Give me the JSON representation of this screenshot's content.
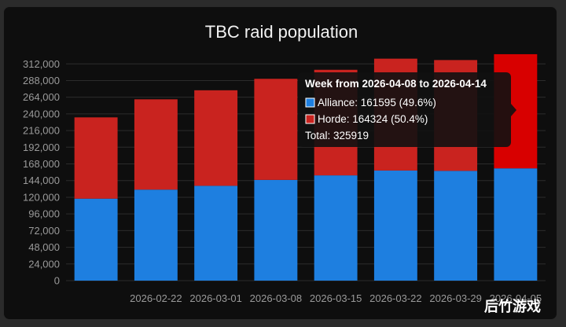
{
  "chart_data": {
    "type": "bar",
    "stacked": true,
    "title": "TBC raid population",
    "categories": [
      "",
      "2026-02-22",
      "2026-03-01",
      "2026-03-08",
      "2026-03-15",
      "2026-03-22",
      "2026-03-29",
      "2026-04-05"
    ],
    "x_tick_labels": [
      "2026-02-22",
      "2026-03-01",
      "2026-03-08",
      "2026-03-15",
      "2026-03-22",
      "2026-03-29",
      "2026-04-05"
    ],
    "series": [
      {
        "name": "Alliance",
        "color": "#1e7fe0",
        "values": [
          118000,
          131000,
          136500,
          145000,
          151500,
          158500,
          158000,
          161595
        ]
      },
      {
        "name": "Horde",
        "color": "#c9231f",
        "values": [
          117000,
          130000,
          137500,
          145500,
          152000,
          161000,
          159500,
          164324
        ]
      }
    ],
    "highlight_color": "#d80000",
    "ylim": [
      0,
      327000
    ],
    "yticks": [
      "0",
      "24,000",
      "48,000",
      "72,000",
      "96,000",
      "120,000",
      "144,000",
      "168,000",
      "192,000",
      "216,000",
      "240,000",
      "264,000",
      "288,000",
      "312,000"
    ],
    "ytick_values": [
      0,
      24000,
      48000,
      72000,
      96000,
      120000,
      144000,
      168000,
      192000,
      216000,
      240000,
      264000,
      288000,
      312000
    ],
    "grid": true,
    "legend": "none"
  },
  "tooltip": {
    "header": "Week from 2026-04-08 to 2026-04-14",
    "alliance_line": "Alliance: 161595 (49.6%)",
    "horde_line": "Horde: 164324 (50.4%)",
    "total_line": "Total: 325919",
    "alliance_color": "#1e7fe0",
    "horde_color": "#c9231f"
  },
  "watermark": "后竹游戏"
}
